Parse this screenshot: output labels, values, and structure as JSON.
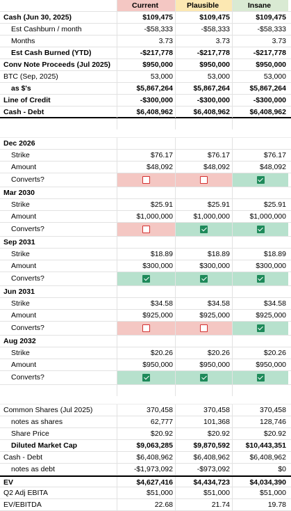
{
  "columns": [
    "",
    "Current",
    "Plausible",
    "Insane"
  ],
  "rows": [
    {
      "label": "Cash (Jun 30, 2025)",
      "vals": [
        "$109,475",
        "$109,475",
        "$109,475"
      ],
      "bold": true
    },
    {
      "label": "Est Cashburn / month",
      "vals": [
        "-$58,333",
        "-$58,333",
        "-$58,333"
      ],
      "indent": 1
    },
    {
      "label": "Months",
      "vals": [
        "3.73",
        "3.73",
        "3.73"
      ],
      "indent": 1
    },
    {
      "label": "Est Cash Burned (YTD)",
      "vals": [
        "-$217,778",
        "-$217,778",
        "-$217,778"
      ],
      "bold": true,
      "indent": 1
    },
    {
      "label": "Conv Note Proceeds (Jul 2025)",
      "vals": [
        "$950,000",
        "$950,000",
        "$950,000"
      ],
      "bold": true
    },
    {
      "label": "BTC (Sep, 2025)",
      "vals": [
        "53,000",
        "53,000",
        "53,000"
      ]
    },
    {
      "label": "as $'s",
      "vals": [
        "$5,867,264",
        "$5,867,264",
        "$5,867,264"
      ],
      "bold": true,
      "indent": 1
    },
    {
      "label": "Line of Credit",
      "vals": [
        "-$300,000",
        "-$300,000",
        "-$300,000"
      ],
      "bold": true
    },
    {
      "label": "Cash - Debt",
      "vals": [
        "$6,408,962",
        "$6,408,962",
        "$6,408,962"
      ],
      "bold": true,
      "thick": true
    },
    {
      "blank": true
    },
    {
      "label": "Dec 2026",
      "bold": true,
      "vals": [
        "",
        "",
        ""
      ]
    },
    {
      "label": "Strike",
      "vals": [
        "$76.17",
        "$76.17",
        "$76.17"
      ],
      "indent": 1
    },
    {
      "label": "Amount",
      "vals": [
        "$48,092",
        "$48,092",
        "$48,092"
      ],
      "indent": 1
    },
    {
      "label": "Converts?",
      "checks": [
        false,
        false,
        true
      ],
      "indent": 1
    },
    {
      "label": "Mar 2030",
      "bold": true,
      "vals": [
        "",
        "",
        ""
      ]
    },
    {
      "label": "Strike",
      "vals": [
        "$25.91",
        "$25.91",
        "$25.91"
      ],
      "indent": 1
    },
    {
      "label": "Amount",
      "vals": [
        "$1,000,000",
        "$1,000,000",
        "$1,000,000"
      ],
      "indent": 1
    },
    {
      "label": "Converts?",
      "checks": [
        false,
        true,
        true
      ],
      "indent": 1
    },
    {
      "label": "Sep 2031",
      "bold": true,
      "vals": [
        "",
        "",
        ""
      ]
    },
    {
      "label": "Strike",
      "vals": [
        "$18.89",
        "$18.89",
        "$18.89"
      ],
      "indent": 1
    },
    {
      "label": "Amount",
      "vals": [
        "$300,000",
        "$300,000",
        "$300,000"
      ],
      "indent": 1
    },
    {
      "label": "Converts?",
      "checks": [
        true,
        true,
        true
      ],
      "indent": 1
    },
    {
      "label": "Jun 2031",
      "bold": true,
      "vals": [
        "",
        "",
        ""
      ]
    },
    {
      "label": "Strike",
      "vals": [
        "$34.58",
        "$34.58",
        "$34.58"
      ],
      "indent": 1
    },
    {
      "label": "Amount",
      "vals": [
        "$925,000",
        "$925,000",
        "$925,000"
      ],
      "indent": 1
    },
    {
      "label": "Converts?",
      "checks": [
        false,
        false,
        true
      ],
      "indent": 1
    },
    {
      "label": "Aug 2032",
      "bold": true,
      "vals": [
        "",
        "",
        ""
      ]
    },
    {
      "label": "Strike",
      "vals": [
        "$20.26",
        "$20.26",
        "$20.26"
      ],
      "indent": 1
    },
    {
      "label": "Amount",
      "vals": [
        "$950,000",
        "$950,000",
        "$950,000"
      ],
      "indent": 1
    },
    {
      "label": "Converts?",
      "checks": [
        true,
        true,
        true
      ],
      "indent": 1
    },
    {
      "blank": true
    },
    {
      "label": "Common Shares (Jul 2025)",
      "vals": [
        "370,458",
        "370,458",
        "370,458"
      ]
    },
    {
      "label": "notes as shares",
      "vals": [
        "62,777",
        "101,368",
        "128,746"
      ],
      "indent": 1
    },
    {
      "label": "Share Price",
      "vals": [
        "$20.92",
        "$20.92",
        "$20.92"
      ],
      "indent": 1
    },
    {
      "label": "Diluted Market Cap",
      "vals": [
        "$9,063,285",
        "$9,870,592",
        "$10,443,351"
      ],
      "bold": true,
      "indent": 1
    },
    {
      "label": "Cash - Debt",
      "vals": [
        "$6,408,962",
        "$6,408,962",
        "$6,408,962"
      ]
    },
    {
      "label": "notes as debt",
      "vals": [
        "-$1,973,092",
        "-$973,092",
        "$0"
      ],
      "indent": 1
    },
    {
      "label": "EV",
      "vals": [
        "$4,627,416",
        "$4,434,723",
        "$4,034,390"
      ],
      "bold": true,
      "thickTop": true
    },
    {
      "label": "Q2 Adj EBITA",
      "vals": [
        "$51,000",
        "$51,000",
        "$51,000"
      ]
    },
    {
      "label": "EV/EBITDA",
      "vals": [
        "22.68",
        "21.74",
        "19.78"
      ]
    }
  ]
}
